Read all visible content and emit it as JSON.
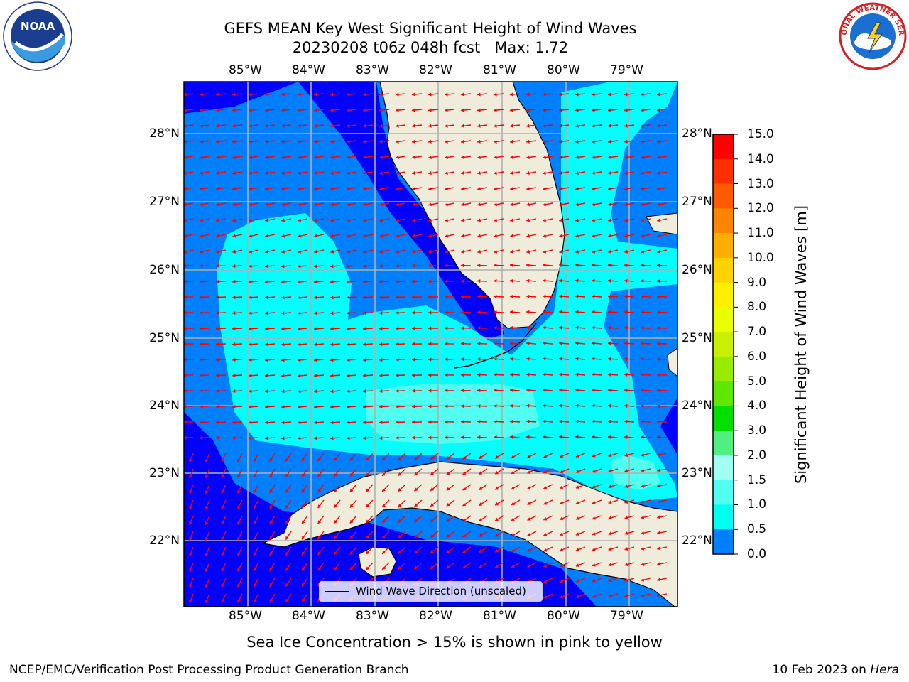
{
  "title_line1": "GEFS MEAN Key West Significant Height of Wind Waves",
  "title_line2": "20230208 t06z 048h fcst   Max: 1.72",
  "lon_labels": [
    "85°W",
    "84°W",
    "83°W",
    "82°W",
    "81°W",
    "80°W",
    "79°W"
  ],
  "lat_labels": [
    "28°N",
    "27°N",
    "26°N",
    "25°N",
    "24°N",
    "23°N",
    "22°N"
  ],
  "colorbar": {
    "label": "Significant Height of Wind Waves [m]",
    "ticks": [
      "15.0",
      "14.0",
      "13.0",
      "12.0",
      "11.0",
      "10.0",
      "9.0",
      "8.0",
      "7.0",
      "6.0",
      "5.0",
      "4.0",
      "3.0",
      "2.0",
      "1.5",
      "1.0",
      "0.5",
      "0.0"
    ],
    "colors": [
      "#ff0000",
      "#ff3000",
      "#ff5a00",
      "#ff8400",
      "#ffae00",
      "#ffd200",
      "#fff000",
      "#eaff00",
      "#c8f000",
      "#98ec00",
      "#5ee800",
      "#00e000",
      "#50f080",
      "#a0fff0",
      "#50fff0",
      "#00fff0",
      "#0080ff",
      "#0000ff"
    ],
    "max_value": 15.0
  },
  "legend": {
    "label": "Wind Wave Direction (unscaled)"
  },
  "sea_ice_note": "Sea Ice Concentration > 15% is shown in pink to yellow",
  "footer_left": "NCEP/EMC/Verification Post Processing Product Generation Branch",
  "footer_right_date": "10 Feb 2023 on",
  "footer_right_machine": "Hera",
  "logos": {
    "left": "NOAA",
    "right": "NATIONAL WEATHER SERVICE"
  },
  "colors": {
    "land": "#efecdc",
    "arrow": "#ff0000",
    "grid": "#b0b0b0"
  }
}
